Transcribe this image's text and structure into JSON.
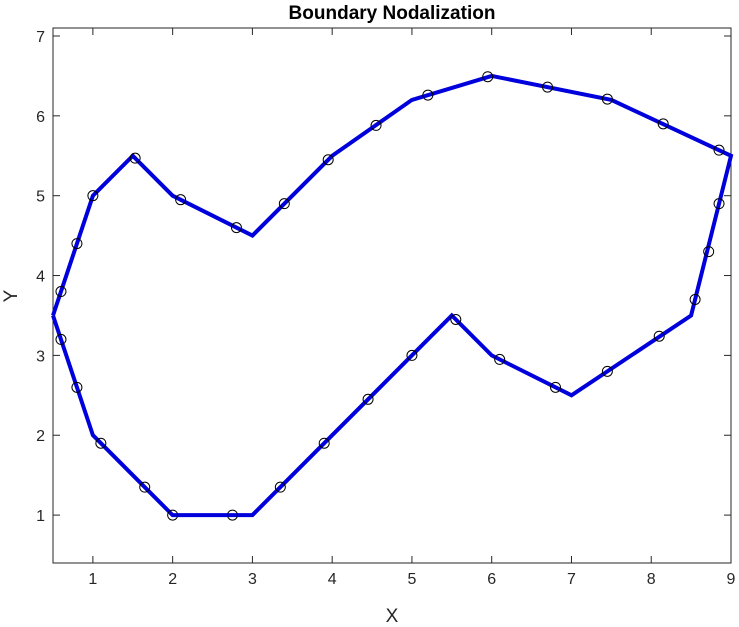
{
  "chart_data": {
    "type": "line",
    "title": "Boundary Nodalization",
    "xlabel": "X",
    "ylabel": "Y",
    "xlim": [
      0.5,
      9
    ],
    "ylim": [
      0.4,
      7.1
    ],
    "xticks": [
      1,
      2,
      3,
      4,
      5,
      6,
      7,
      8,
      9
    ],
    "yticks": [
      1,
      2,
      3,
      4,
      5,
      6,
      7
    ],
    "grid": false,
    "legend": "none",
    "colors": {
      "line": "#0000dd",
      "marker": "#000000",
      "axes": "#262626"
    },
    "series": [
      {
        "style": "line",
        "points": [
          [
            0.5,
            3.5
          ],
          [
            1.0,
            5.0
          ],
          [
            1.5,
            5.5
          ],
          [
            2.0,
            5.0
          ],
          [
            3.0,
            4.5
          ],
          [
            4.0,
            5.5
          ],
          [
            5.0,
            6.2
          ],
          [
            6.0,
            6.5
          ],
          [
            7.5,
            6.2
          ],
          [
            9.0,
            5.5
          ],
          [
            8.5,
            3.5
          ],
          [
            7.0,
            2.5
          ],
          [
            6.0,
            3.0
          ],
          [
            5.5,
            3.5
          ],
          [
            4.0,
            2.0
          ],
          [
            3.0,
            1.0
          ],
          [
            2.0,
            1.0
          ],
          [
            1.0,
            2.0
          ],
          [
            0.5,
            3.5
          ]
        ]
      },
      {
        "style": "markers",
        "points": [
          [
            0.6,
            3.8
          ],
          [
            0.8,
            4.4
          ],
          [
            1.0,
            5.0
          ],
          [
            1.53,
            5.47
          ],
          [
            2.1,
            4.95
          ],
          [
            2.8,
            4.6
          ],
          [
            3.4,
            4.9
          ],
          [
            3.95,
            5.45
          ],
          [
            4.55,
            5.88
          ],
          [
            5.2,
            6.26
          ],
          [
            5.95,
            6.49
          ],
          [
            6.7,
            6.36
          ],
          [
            7.45,
            6.21
          ],
          [
            8.15,
            5.9
          ],
          [
            8.85,
            5.57
          ],
          [
            8.85,
            4.9
          ],
          [
            8.72,
            4.3
          ],
          [
            8.55,
            3.7
          ],
          [
            8.1,
            3.24
          ],
          [
            7.45,
            2.8
          ],
          [
            6.8,
            2.6
          ],
          [
            6.1,
            2.95
          ],
          [
            5.55,
            3.45
          ],
          [
            5.0,
            3.0
          ],
          [
            4.45,
            2.45
          ],
          [
            3.9,
            1.9
          ],
          [
            3.35,
            1.35
          ],
          [
            2.75,
            1.0
          ],
          [
            2.0,
            1.0
          ],
          [
            1.65,
            1.35
          ],
          [
            1.1,
            1.9
          ],
          [
            0.8,
            2.6
          ],
          [
            0.6,
            3.2
          ]
        ]
      }
    ]
  }
}
